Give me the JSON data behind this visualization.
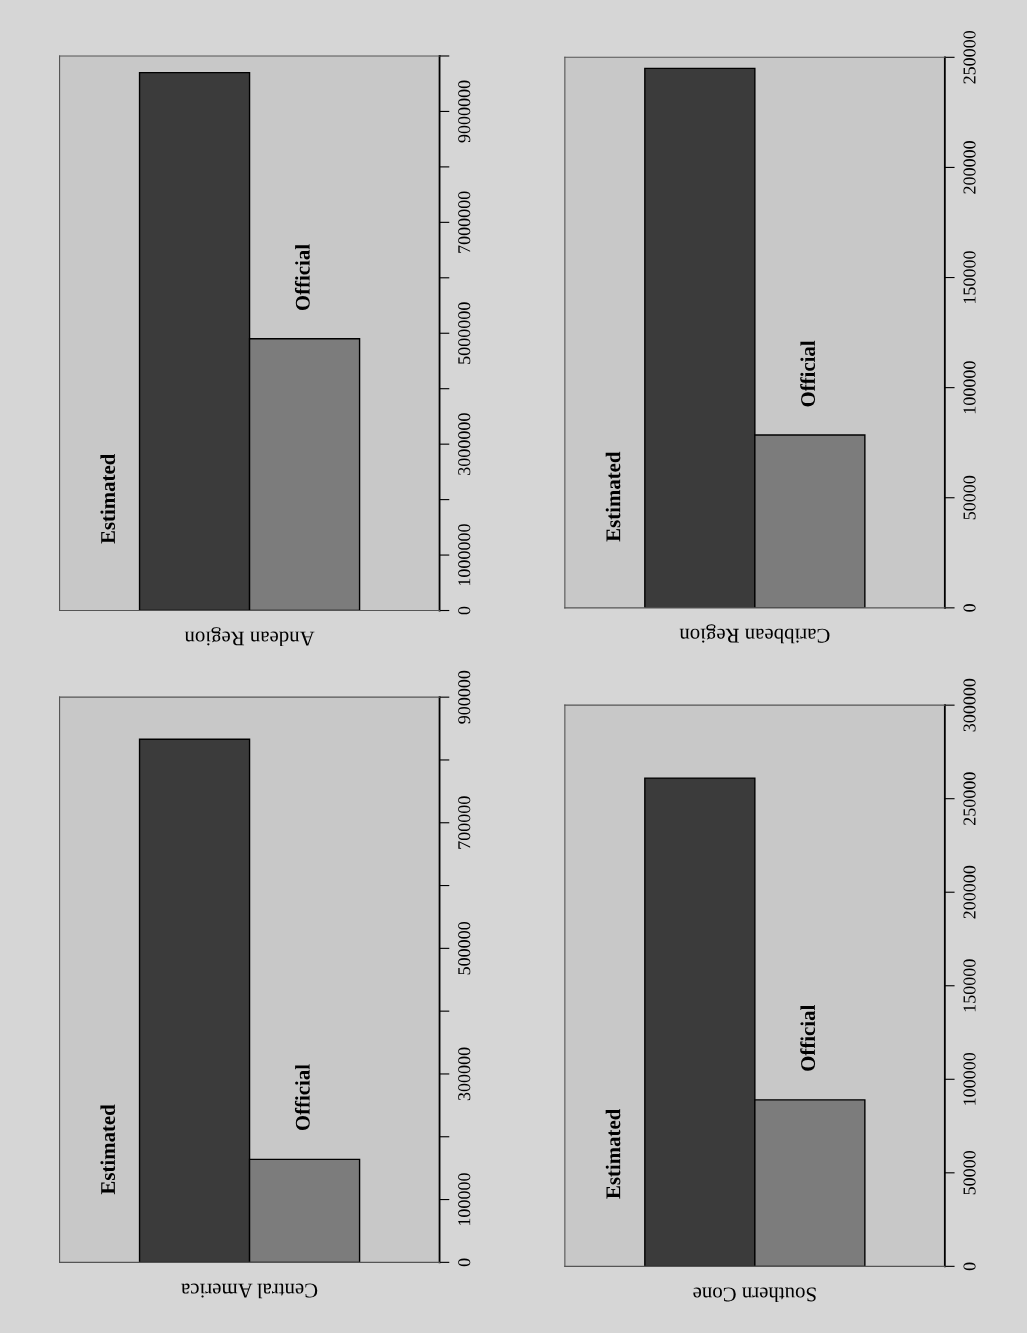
{
  "chart_data": [
    {
      "type": "bar",
      "title": "Central America",
      "categories": [
        "Estimated",
        "Official"
      ],
      "values": [
        833000,
        164000
      ],
      "colors": [
        "#3b3b3b",
        "#7c7c7c"
      ],
      "ylim": [
        0,
        900000
      ],
      "yticks": [
        0,
        {
          "value": 100000,
          "label": "100000"
        },
        {
          "value": 200000,
          "label": null
        },
        300000,
        {
          "value": 400000,
          "label": null
        },
        500000,
        {
          "value": 600000,
          "label": null
        },
        700000,
        {
          "value": 800000,
          "label": null
        },
        900000
      ]
    },
    {
      "type": "bar",
      "title": "Andean Region",
      "categories": [
        "Estimated",
        "Official"
      ],
      "values": [
        9700000,
        4900000
      ],
      "colors": [
        "#3b3b3b",
        "#7c7c7c"
      ],
      "ylim": [
        0,
        10000000
      ],
      "yticks": [
        0,
        1000000,
        {
          "value": 2000000,
          "label": null
        },
        3000000,
        {
          "value": 4000000,
          "label": null
        },
        5000000,
        {
          "value": 6000000,
          "label": null
        },
        7000000,
        {
          "value": 8000000,
          "label": null
        },
        9000000,
        {
          "value": 10000000,
          "label": null
        }
      ]
    },
    {
      "type": "bar",
      "title": "Southern Cone",
      "categories": [
        "Estimated",
        "Official"
      ],
      "values": [
        261000,
        89000
      ],
      "colors": [
        "#3b3b3b",
        "#7c7c7c"
      ],
      "ylim": [
        0,
        300000
      ],
      "yticks": [
        0,
        50000,
        100000,
        150000,
        200000,
        250000,
        300000
      ]
    },
    {
      "type": "bar",
      "title": "Caribbean Region",
      "categories": [
        "Estimated",
        "Official"
      ],
      "values": [
        245000,
        78500
      ],
      "colors": [
        "#3b3b3b",
        "#7c7c7c"
      ],
      "ylim": [
        0,
        250000
      ],
      "yticks": [
        0,
        50000,
        100000,
        150000,
        200000,
        250000
      ]
    }
  ]
}
